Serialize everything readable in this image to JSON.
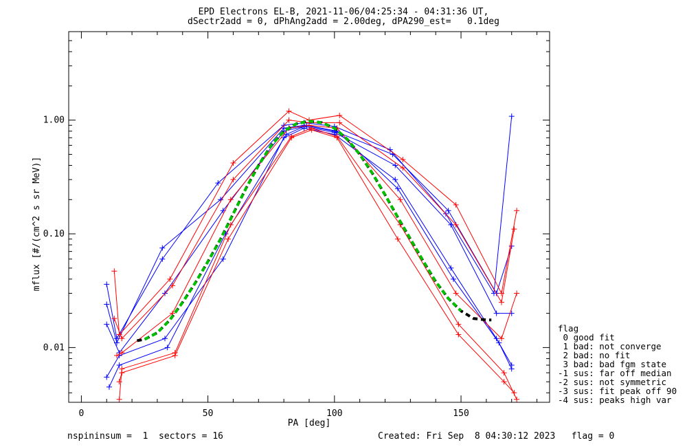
{
  "title_line1": "EPD Electrons EL-B, 2021-11-06/04:25:34 - 04:31:36 UT,",
  "title_line2": "dSectr2add = 0, dPhAng2add = 2.00deg, dPA290_est=   0.1deg",
  "footer_left": "nspininsum =  1  sectors = 16",
  "footer_right": "Created: Fri Sep  8 04:30:12 2023   flag = 0",
  "legend": {
    "title": "flag",
    "items": [
      " 0 good fit",
      " 1 bad: not converge",
      " 2 bad: no fit",
      " 3 bad: bad fgm state",
      "-1 sus: far off median",
      "-2 sus: not symmetric",
      "-3 sus: fit peak off 90",
      "-4 sus: peaks high var"
    ]
  },
  "colors": {
    "series_blue": "#0000ff",
    "series_red": "#ff0000",
    "fit_green": "#00c000",
    "fit_black": "#000000",
    "axes": "#000000"
  },
  "chart_data": {
    "type": "line",
    "title": "EPD Electrons EL-B, 2021-11-06/04:25:34 - 04:31:36 UT,",
    "subtitle": "dSectr2add = 0, dPhAng2add = 2.00deg, dPA290_est=   0.1deg",
    "xlabel": "PA [deg]",
    "ylabel": "mflux [#/(cm^2 s sr MeV)]",
    "xlim": [
      -5,
      185
    ],
    "ylim": [
      0.0033,
      6.0
    ],
    "yscale": "log",
    "xticks": [
      0,
      50,
      100,
      150
    ],
    "xticklabels": [
      "0",
      "50",
      "100",
      "150"
    ],
    "yticks": [
      0.01,
      0.1,
      1.0
    ],
    "yticklabels": [
      "0.01",
      "0.10",
      "1.00"
    ],
    "grid": false,
    "legend_position": "bottom-right, outside plot",
    "series": [
      {
        "color": "blue",
        "x": [
          10,
          14,
          32,
          54,
          80,
          88,
          100,
          122,
          144,
          163,
          170
        ],
        "y": [
          0.036,
          0.012,
          0.06,
          0.28,
          0.9,
          0.95,
          0.88,
          0.55,
          0.15,
          0.03,
          1.08
        ]
      },
      {
        "color": "blue",
        "x": [
          10,
          14,
          32,
          55,
          80,
          88,
          100,
          123,
          145,
          164,
          170
        ],
        "y": [
          0.024,
          0.011,
          0.075,
          0.2,
          0.85,
          0.9,
          0.8,
          0.5,
          0.16,
          0.03,
          0.078
        ]
      },
      {
        "color": "blue",
        "x": [
          10,
          15,
          33,
          56,
          80,
          88,
          100,
          124,
          146,
          164,
          170
        ],
        "y": [
          0.016,
          0.009,
          0.03,
          0.16,
          0.8,
          0.88,
          0.78,
          0.4,
          0.12,
          0.02,
          0.02
        ]
      },
      {
        "color": "blue",
        "x": [
          10,
          15,
          33,
          56,
          80,
          88,
          100,
          124,
          146,
          164,
          170
        ],
        "y": [
          0.0055,
          0.0085,
          0.012,
          0.06,
          0.7,
          0.85,
          0.75,
          0.3,
          0.05,
          0.012,
          0.007
        ]
      },
      {
        "color": "blue",
        "x": [
          11,
          15,
          34,
          57,
          81,
          89,
          101,
          125,
          147,
          165,
          170
        ],
        "y": [
          0.0045,
          0.007,
          0.01,
          0.1,
          0.75,
          0.9,
          0.8,
          0.25,
          0.04,
          0.011,
          0.0065
        ]
      },
      {
        "color": "red",
        "x": [
          13,
          15,
          35,
          60,
          82,
          90,
          102,
          127,
          148,
          166,
          172
        ],
        "y": [
          0.047,
          0.013,
          0.04,
          0.42,
          1.2,
          1.0,
          1.1,
          0.45,
          0.18,
          0.03,
          0.16
        ]
      },
      {
        "color": "red",
        "x": [
          13,
          16,
          36,
          60,
          82,
          90,
          102,
          127,
          148,
          166,
          171
        ],
        "y": [
          0.018,
          0.012,
          0.035,
          0.3,
          1.0,
          0.95,
          0.95,
          0.38,
          0.12,
          0.025,
          0.11
        ]
      },
      {
        "color": "red",
        "x": [
          14,
          16,
          36,
          59,
          82,
          90,
          101,
          126,
          148,
          166,
          172
        ],
        "y": [
          0.0085,
          0.009,
          0.02,
          0.2,
          0.85,
          0.9,
          0.85,
          0.2,
          0.03,
          0.012,
          0.03
        ]
      },
      {
        "color": "red",
        "x": [
          15,
          16,
          37,
          59,
          83,
          91,
          101,
          126,
          149,
          167,
          172
        ],
        "y": [
          0.0035,
          0.0065,
          0.009,
          0.12,
          0.72,
          0.85,
          0.72,
          0.12,
          0.016,
          0.006,
          0.0035
        ]
      },
      {
        "color": "red",
        "x": [
          15,
          16,
          37,
          58,
          83,
          91,
          101,
          125,
          149,
          167,
          171
        ],
        "y": [
          0.005,
          0.006,
          0.0085,
          0.09,
          0.7,
          0.82,
          0.7,
          0.09,
          0.013,
          0.005,
          0.004
        ]
      }
    ],
    "fit_curve": {
      "style": "green dashed with black dashed ends",
      "x": [
        22,
        25,
        30,
        35,
        40,
        45,
        50,
        55,
        60,
        65,
        70,
        75,
        80,
        85,
        90,
        95,
        100,
        105,
        110,
        115,
        120,
        125,
        130,
        135,
        140,
        145,
        150,
        155,
        160,
        162
      ],
      "y": [
        0.0115,
        0.0118,
        0.0135,
        0.0175,
        0.025,
        0.037,
        0.057,
        0.09,
        0.15,
        0.25,
        0.4,
        0.6,
        0.8,
        0.93,
        0.98,
        0.95,
        0.85,
        0.68,
        0.5,
        0.34,
        0.22,
        0.14,
        0.09,
        0.058,
        0.038,
        0.027,
        0.021,
        0.018,
        0.0175,
        0.0175
      ]
    }
  }
}
